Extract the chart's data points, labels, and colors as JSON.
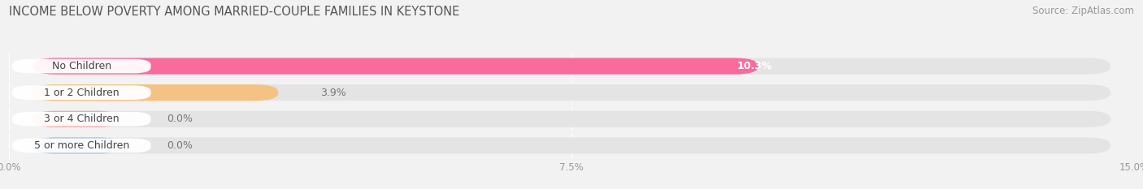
{
  "title": "INCOME BELOW POVERTY AMONG MARRIED-COUPLE FAMILIES IN KEYSTONE",
  "source": "Source: ZipAtlas.com",
  "categories": [
    "No Children",
    "1 or 2 Children",
    "3 or 4 Children",
    "5 or more Children"
  ],
  "values": [
    10.3,
    3.9,
    0.0,
    0.0
  ],
  "bar_colors": [
    "#f76b9d",
    "#f5c285",
    "#f5a8a8",
    "#aac4e0"
  ],
  "xlim": [
    0,
    15.0
  ],
  "xticks": [
    0.0,
    7.5,
    15.0
  ],
  "xticklabels": [
    "0.0%",
    "7.5%",
    "15.0%"
  ],
  "background_color": "#f2f2f2",
  "bar_bg_color": "#e4e4e4",
  "title_fontsize": 10.5,
  "source_fontsize": 8.5,
  "label_fontsize": 9,
  "value_fontsize": 9
}
